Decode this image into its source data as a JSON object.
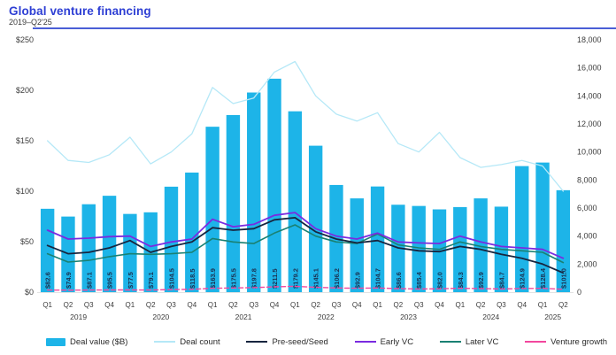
{
  "header": {
    "title": "Global venture financing",
    "subtitle": "2019–Q2'25"
  },
  "colors": {
    "title_blue": "#2e3fd4",
    "bar_cyan": "#1db4e8",
    "deal_count_line": "#b5e8f7",
    "preseed_line": "#17253f",
    "early_vc_line": "#7a2be0",
    "later_vc_line": "#1a8173",
    "venture_growth_line": "#f2479e",
    "axis_text": "#3c3c3c",
    "bar_label_text": "#1b3050"
  },
  "chart_data": {
    "type": "combo-bar-line",
    "title": "Global venture financing",
    "subtitle": "2019–Q2'25",
    "grid": "off",
    "legend_position": "bottom",
    "categories": [
      "Q1",
      "Q2",
      "Q3",
      "Q4",
      "Q1",
      "Q2",
      "Q3",
      "Q4",
      "Q1",
      "Q2",
      "Q3",
      "Q4",
      "Q1",
      "Q2",
      "Q3",
      "Q4",
      "Q1",
      "Q2",
      "Q3",
      "Q4",
      "Q1",
      "Q2",
      "Q3",
      "Q4",
      "Q1",
      "Q2"
    ],
    "years": [
      {
        "label": "2019",
        "quarters": 4
      },
      {
        "label": "2020",
        "quarters": 4
      },
      {
        "label": "2021",
        "quarters": 4
      },
      {
        "label": "2022",
        "quarters": 4
      },
      {
        "label": "2023",
        "quarters": 4
      },
      {
        "label": "2024",
        "quarters": 4
      },
      {
        "label": "2025",
        "quarters": 2
      }
    ],
    "left_axis": {
      "min": 0,
      "max": 250,
      "ticks": [
        "$250",
        "$200",
        "$150",
        "$100",
        "$50",
        "$0"
      ]
    },
    "right_axis": {
      "min": 0,
      "max": 18000,
      "ticks": [
        "18,000",
        "16,000",
        "14,000",
        "12,000",
        "10,000",
        "8,000",
        "6,000",
        "4,000",
        "2,000",
        "0"
      ]
    },
    "bar_series": {
      "name": "Deal value ($B)",
      "axis": "left",
      "color": "#1db4e8",
      "values": [
        82.6,
        74.9,
        87.1,
        95.5,
        77.5,
        79.1,
        104.5,
        118.5,
        163.9,
        175.5,
        197.8,
        211.5,
        179.2,
        145.1,
        106.2,
        92.9,
        104.7,
        86.6,
        85.4,
        82.0,
        84.3,
        92.9,
        84.7,
        124.9,
        128.4,
        101.0
      ],
      "labels": [
        "$82.6",
        "$74.9",
        "$87.1",
        "$95.5",
        "$77.5",
        "$79.1",
        "$104.5",
        "$118.5",
        "$163.9",
        "$175.5",
        "$197.8",
        "$211.5",
        "$179.2",
        "$145.1",
        "$106.2",
        "$92.9",
        "$104.7",
        "$86.6",
        "$85.4",
        "$82.0",
        "$84.3",
        "$92.9",
        "$84.7",
        "$124.9",
        "$128.4",
        "$101.0"
      ]
    },
    "line_series": [
      {
        "name": "Deal count",
        "axis": "right",
        "color": "#b5e8f7",
        "width": 1.3,
        "dash": "",
        "values": [
          10800,
          9400,
          9250,
          9800,
          11050,
          9150,
          10000,
          11300,
          14600,
          13450,
          13850,
          15700,
          16450,
          14000,
          12700,
          12200,
          12800,
          10600,
          10000,
          11400,
          9600,
          8900,
          9100,
          9400,
          9000,
          7200
        ]
      },
      {
        "name": "Later VC",
        "axis": "right",
        "color": "#1a8173",
        "width": 1.6,
        "dash": "",
        "values": [
          2740,
          2150,
          2270,
          2530,
          2740,
          2700,
          2740,
          2840,
          3830,
          3580,
          3470,
          4210,
          4800,
          4000,
          3580,
          3470,
          4150,
          3370,
          3160,
          3050,
          3580,
          3260,
          3050,
          2950,
          2840,
          2110
        ]
      },
      {
        "name": "Pre-seed/Seed",
        "axis": "right",
        "color": "#17253f",
        "width": 1.8,
        "dash": "",
        "values": [
          3330,
          2740,
          2840,
          3160,
          3680,
          2840,
          3260,
          3580,
          4600,
          4420,
          4530,
          5160,
          5310,
          4310,
          3790,
          3510,
          3680,
          3160,
          2950,
          2890,
          3260,
          3050,
          2700,
          2420,
          2000,
          1370
        ]
      },
      {
        "name": "Early VC",
        "axis": "right",
        "color": "#7a2be0",
        "width": 1.8,
        "dash": "",
        "values": [
          4420,
          3790,
          3850,
          3960,
          4000,
          3260,
          3580,
          3790,
          5200,
          4670,
          4840,
          5480,
          5680,
          4530,
          4000,
          3790,
          4210,
          3580,
          3510,
          3470,
          4000,
          3580,
          3260,
          3160,
          3050,
          2420
        ]
      },
      {
        "name": "Venture growth",
        "axis": "right",
        "color": "#f2479e",
        "width": 1.4,
        "dash": "5 3",
        "values": [
          150,
          140,
          150,
          160,
          160,
          150,
          180,
          200,
          280,
          300,
          320,
          380,
          420,
          350,
          300,
          280,
          300,
          250,
          230,
          240,
          280,
          250,
          230,
          260,
          270,
          200
        ]
      }
    ],
    "legend": [
      {
        "label": "Deal value ($B)",
        "swatch": "bar",
        "color": "#1db4e8"
      },
      {
        "label": "Deal count",
        "swatch": "line",
        "color": "#b5e8f7"
      },
      {
        "label": "Pre-seed/Seed",
        "swatch": "line",
        "color": "#17253f"
      },
      {
        "label": "Early VC",
        "swatch": "line",
        "color": "#7a2be0"
      },
      {
        "label": "Later VC",
        "swatch": "line",
        "color": "#1a8173"
      },
      {
        "label": "Venture growth",
        "swatch": "line",
        "color": "#f2479e"
      }
    ]
  }
}
